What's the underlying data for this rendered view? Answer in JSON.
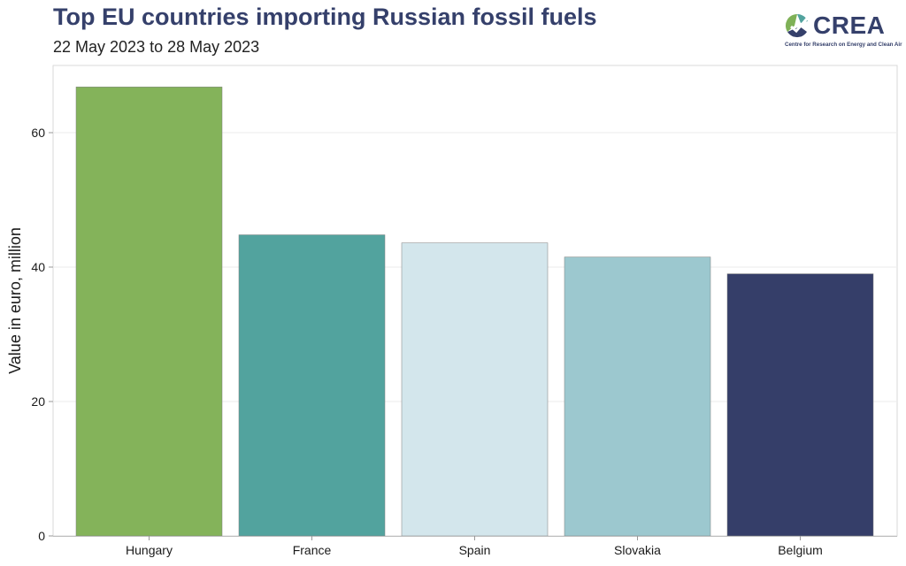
{
  "header": {
    "title": "Top EU countries importing Russian fossil fuels",
    "subtitle": "22 May 2023 to 28 May 2023"
  },
  "logo": {
    "wordmark": "CREA",
    "tagline": "Centre for Research on Energy and Clean Air",
    "colors": [
      "#7fb157",
      "#35406b",
      "#52a39e"
    ]
  },
  "chart_data": {
    "type": "bar",
    "title": "Top EU countries importing Russian fossil fuels",
    "subtitle": "22 May 2023 to 28 May 2023",
    "categories": [
      "Hungary",
      "France",
      "Spain",
      "Slovakia",
      "Belgium"
    ],
    "values": [
      66.8,
      44.8,
      43.6,
      41.5,
      39.0
    ],
    "colors": [
      "#84b35a",
      "#52a39e",
      "#d3e6ec",
      "#9cc8cf",
      "#353e69"
    ],
    "xlabel": "",
    "ylabel": "Value in euro, million",
    "ylim": [
      0,
      70
    ],
    "yticks": [
      0,
      20,
      40,
      60
    ],
    "grid": true,
    "legend": "none"
  }
}
